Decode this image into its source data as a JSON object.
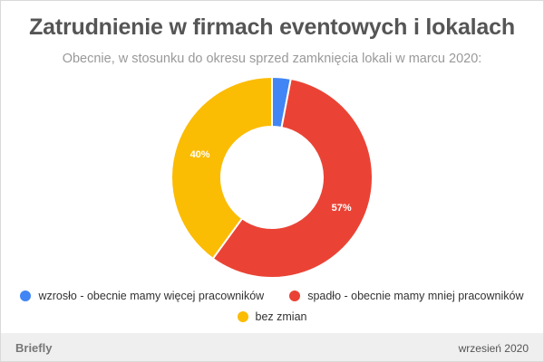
{
  "chart_data": {
    "type": "pie",
    "donut": true,
    "title": "Zatrudnienie w firmach eventowych i lokalach",
    "subtitle": "Obecnie, w stosunku do okresu sprzed zamknięcia lokali w marcu 2020:",
    "slices": [
      {
        "label": "wzrosło - obecnie mamy więcej pracowników",
        "value": 3,
        "data_label": "",
        "color": "#4285f4"
      },
      {
        "label": "spadło - obecnie mamy mniej pracowników",
        "value": 57,
        "data_label": "57%",
        "color": "#ea4335"
      },
      {
        "label": "bez zmian",
        "value": 40,
        "data_label": "40%",
        "color": "#fbbc04"
      }
    ],
    "legend_position": "bottom"
  },
  "footer": {
    "brand": "Briefly",
    "date": "wrzesień 2020"
  }
}
